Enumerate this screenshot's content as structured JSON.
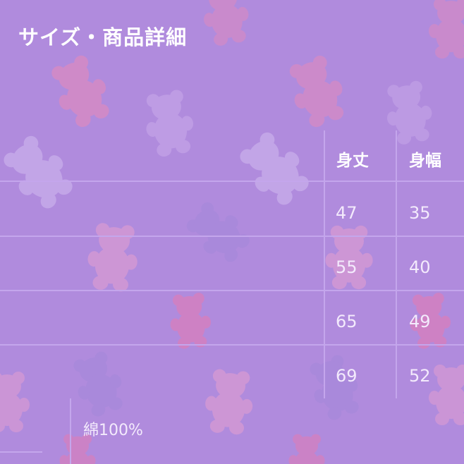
{
  "title": "サイズ・商品詳細",
  "table": {
    "headers": [
      "身丈",
      "身幅"
    ],
    "rows": [
      [
        "47",
        "35"
      ],
      [
        "55",
        "40"
      ],
      [
        "65",
        "49"
      ],
      [
        "69",
        "52"
      ]
    ]
  },
  "material": "綿100%",
  "colors": {
    "background": "#b08bdd",
    "text": "#ffffff"
  }
}
